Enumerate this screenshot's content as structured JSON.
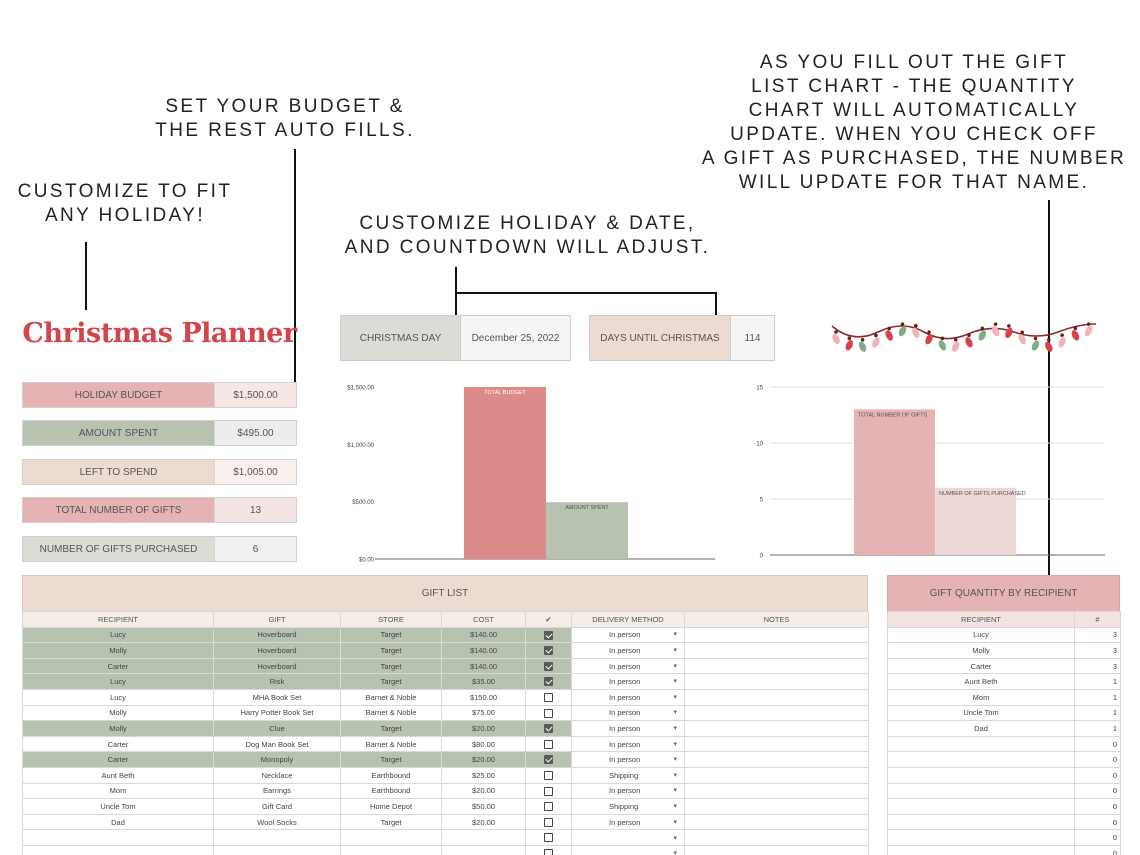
{
  "annotations": {
    "customize_fit": "CUSTOMIZE TO FIT\nANY HOLIDAY!",
    "budget": "SET YOUR BUDGET &\nTHE REST AUTO FILLS.",
    "holiday_date": "CUSTOMIZE HOLIDAY & DATE,\nAND COUNTDOWN WILL ADJUST.",
    "gift_list_note": "AS YOU FILL OUT THE GIFT\nLIST CHART - THE QUANTITY\nCHART WILL AUTOMATICALLY\nUPDATE. WHEN YOU CHECK OFF\nA GIFT AS PURCHASED, THE NUMBER\nWILL UPDATE FOR THAT NAME."
  },
  "title": "Christmas Planner",
  "summary": [
    {
      "label": "HOLIDAY BUDGET",
      "value": "$1,500.00",
      "color": "#e5b3b4",
      "valcolor": "#f7e6e6"
    },
    {
      "label": "AMOUNT SPENT",
      "value": "$495.00",
      "color": "#b7c2b0",
      "valcolor": "#ededed"
    },
    {
      "label": "LEFT TO SPEND",
      "value": "$1,005.00",
      "color": "#ecdbd0",
      "valcolor": "#f8f1ed"
    },
    {
      "label": "TOTAL NUMBER OF GIFTS",
      "value": "13",
      "color": "#e5b3b4",
      "valcolor": "#f4e3e3"
    },
    {
      "label": "NUMBER OF GIFTS PURCHASED",
      "value": "6",
      "color": "#d9ddd5",
      "valcolor": "#f0f0f0"
    }
  ],
  "holiday": {
    "label": "CHRISTMAS DAY",
    "date": "December 25, 2022",
    "color": "#d9ddd5"
  },
  "countdown": {
    "label": "DAYS UNTIL CHRISTMAS",
    "value": "114",
    "color": "#ecdbd0"
  },
  "chart_data": [
    {
      "type": "bar",
      "categories": [
        "TOTAL BUDGET",
        "AMOUNT SPENT"
      ],
      "values": [
        1500,
        495
      ],
      "colors": [
        "#dd8a8b",
        "#b7c2b0"
      ],
      "ylim": [
        0,
        1500
      ],
      "yticks": [
        "$0.00",
        "$500.00",
        "$1,000.00",
        "$1,500.00"
      ],
      "ytick_values": [
        0,
        500,
        1000,
        1500
      ],
      "title": "",
      "xlabel": "",
      "ylabel": ""
    },
    {
      "type": "bar",
      "categories": [
        "TOTAL NUMBER OF GIFTS",
        "NUMBER OF GIFTS PURCHASED"
      ],
      "values": [
        13,
        6
      ],
      "colors": [
        "#e5b3b4",
        "#eed7d7"
      ],
      "ylim": [
        0,
        15
      ],
      "yticks": [
        "0",
        "5",
        "10",
        "15"
      ],
      "ytick_values": [
        0,
        5,
        10,
        15
      ],
      "grid": true,
      "title": "",
      "xlabel": "",
      "ylabel": ""
    }
  ],
  "gift_list": {
    "title": "GIFT LIST",
    "columns": [
      "RECIPIENT",
      "GIFT",
      "STORE",
      "COST",
      "✔",
      "DELIVERY METHOD",
      "NOTES"
    ],
    "rows": [
      {
        "recipient": "Lucy",
        "gift": "Hoverboard",
        "store": "Target",
        "cost": "$140.00",
        "purchased": true,
        "delivery": "In person"
      },
      {
        "recipient": "Molly",
        "gift": "Hoverboard",
        "store": "Target",
        "cost": "$140.00",
        "purchased": true,
        "delivery": "In person"
      },
      {
        "recipient": "Carter",
        "gift": "Hoverboard",
        "store": "Target",
        "cost": "$140.00",
        "purchased": true,
        "delivery": "In person"
      },
      {
        "recipient": "Lucy",
        "gift": "Risk",
        "store": "Target",
        "cost": "$35.00",
        "purchased": true,
        "delivery": "In person"
      },
      {
        "recipient": "Lucy",
        "gift": "MHA Book Set",
        "store": "Barnet & Noble",
        "cost": "$150.00",
        "purchased": false,
        "delivery": "In person"
      },
      {
        "recipient": "Molly",
        "gift": "Harry Potter Book Set",
        "store": "Barnet & Noble",
        "cost": "$75.00",
        "purchased": false,
        "delivery": "In person"
      },
      {
        "recipient": "Molly",
        "gift": "Clue",
        "store": "Target",
        "cost": "$20.00",
        "purchased": true,
        "delivery": "In person"
      },
      {
        "recipient": "Carter",
        "gift": "Dog Man Book Set",
        "store": "Barnet & Noble",
        "cost": "$80.00",
        "purchased": false,
        "delivery": "In person"
      },
      {
        "recipient": "Carter",
        "gift": "Monopoly",
        "store": "Target",
        "cost": "$20.00",
        "purchased": true,
        "delivery": "In person"
      },
      {
        "recipient": "Aunt Beth",
        "gift": "Necklace",
        "store": "Earthbound",
        "cost": "$25.00",
        "purchased": false,
        "delivery": "Shipping"
      },
      {
        "recipient": "Mom",
        "gift": "Earrings",
        "store": "Earthbound",
        "cost": "$20.00",
        "purchased": false,
        "delivery": "In person"
      },
      {
        "recipient": "Uncle Tom",
        "gift": "Gift Card",
        "store": "Home Depot",
        "cost": "$50.00",
        "purchased": false,
        "delivery": "Shipping"
      },
      {
        "recipient": "Dad",
        "gift": "Wool Socks",
        "store": "Target",
        "cost": "$20.00",
        "purchased": false,
        "delivery": "In person"
      },
      {
        "recipient": "",
        "gift": "",
        "store": "",
        "cost": "",
        "purchased": false,
        "delivery": ""
      },
      {
        "recipient": "",
        "gift": "",
        "store": "",
        "cost": "",
        "purchased": false,
        "delivery": ""
      },
      {
        "recipient": "",
        "gift": "",
        "store": "",
        "cost": "",
        "purchased": false,
        "delivery": ""
      }
    ]
  },
  "gift_quantity": {
    "title": "GIFT QUANTITY BY RECIPIENT",
    "columns": [
      "RECIPIENT",
      "#"
    ],
    "rows": [
      {
        "recipient": "Lucy",
        "count": "3"
      },
      {
        "recipient": "Molly",
        "count": "3"
      },
      {
        "recipient": "Carter",
        "count": "3"
      },
      {
        "recipient": "Aunt Beth",
        "count": "1"
      },
      {
        "recipient": "Mom",
        "count": "1"
      },
      {
        "recipient": "Uncle Tom",
        "count": "1"
      },
      {
        "recipient": "Dad",
        "count": "1"
      },
      {
        "recipient": "",
        "count": "0"
      },
      {
        "recipient": "",
        "count": "0"
      },
      {
        "recipient": "",
        "count": "0"
      },
      {
        "recipient": "",
        "count": "0"
      },
      {
        "recipient": "",
        "count": "0"
      },
      {
        "recipient": "",
        "count": "0"
      },
      {
        "recipient": "",
        "count": "0"
      },
      {
        "recipient": "",
        "count": "0"
      },
      {
        "recipient": "",
        "count": "0"
      }
    ]
  },
  "colors": {
    "accent": "#d4444b",
    "sage": "#b7c2b0",
    "blush": "#e5b3b4",
    "sand": "#ecdbd0"
  },
  "decoration_icon": "christmas-lights-garland"
}
